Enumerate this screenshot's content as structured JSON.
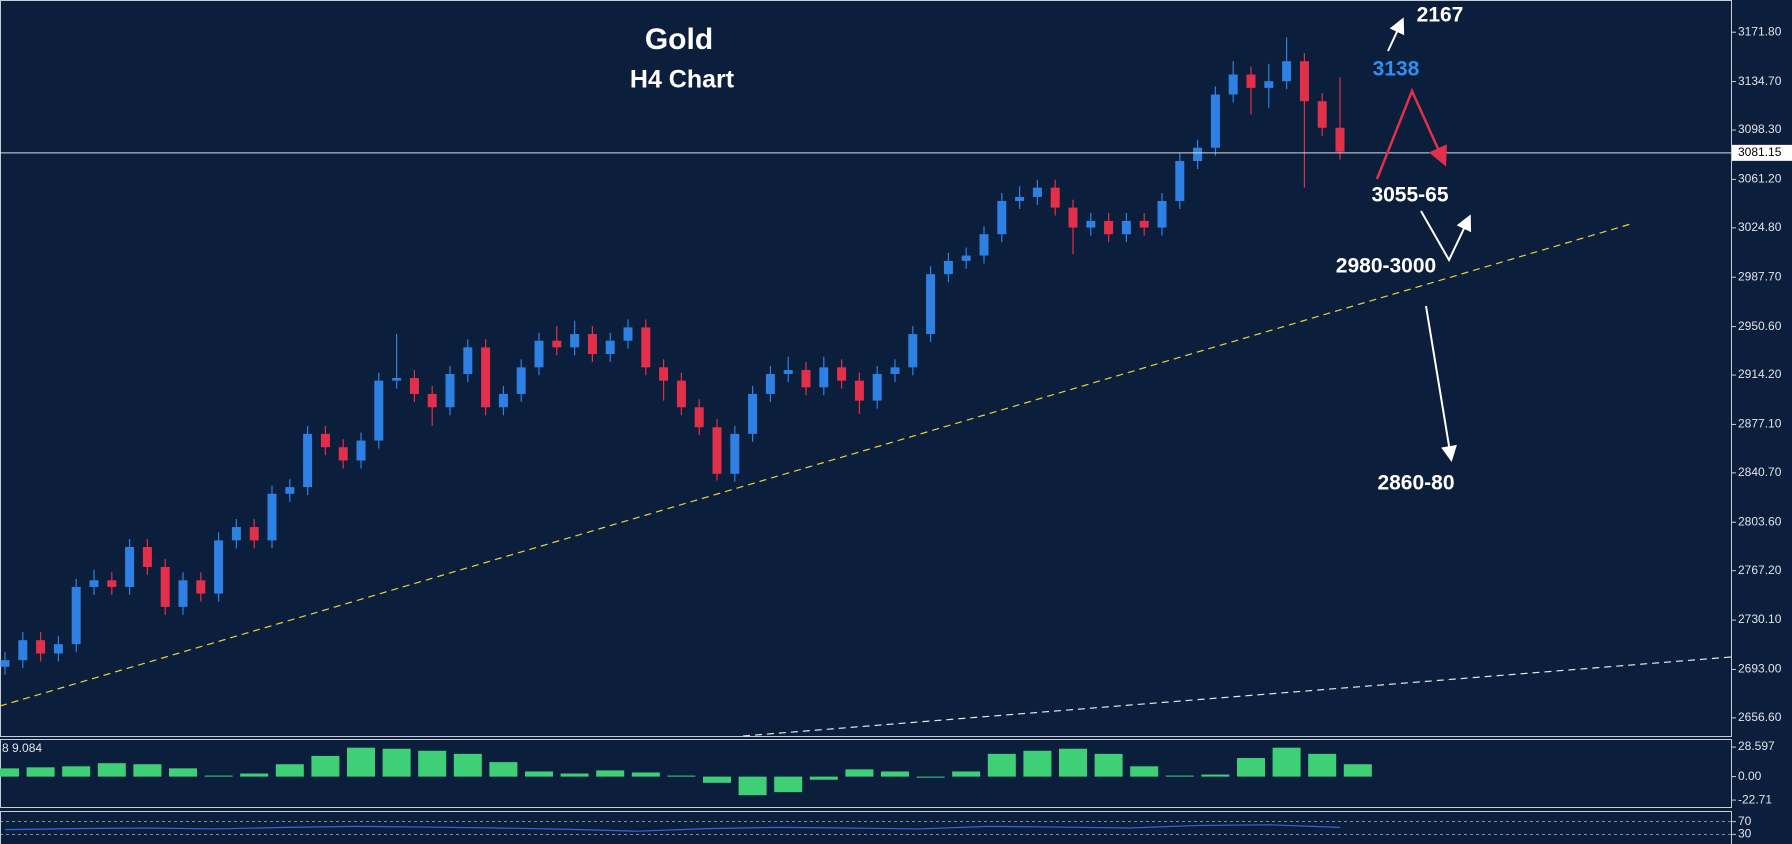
{
  "chart_data": {
    "type": "candlestick",
    "title": "Gold",
    "subtitle": "H4 Chart",
    "up_color": "#2f80e3",
    "down_color": "#e2304a",
    "ohlc": [
      [
        2695,
        2706,
        2689,
        2700
      ],
      [
        2700,
        2721,
        2694,
        2715
      ],
      [
        2715,
        2721,
        2699,
        2705
      ],
      [
        2705,
        2718,
        2699,
        2712
      ],
      [
        2712,
        2761,
        2706,
        2755
      ],
      [
        2755,
        2768,
        2749,
        2760
      ],
      [
        2760,
        2766,
        2749,
        2755
      ],
      [
        2755,
        2791,
        2749,
        2785
      ],
      [
        2785,
        2791,
        2764,
        2770
      ],
      [
        2770,
        2776,
        2734,
        2740
      ],
      [
        2740,
        2766,
        2734,
        2760
      ],
      [
        2760,
        2766,
        2744,
        2750
      ],
      [
        2750,
        2796,
        2744,
        2790
      ],
      [
        2790,
        2806,
        2784,
        2800
      ],
      [
        2800,
        2806,
        2784,
        2790
      ],
      [
        2790,
        2831,
        2784,
        2825
      ],
      [
        2825,
        2836,
        2819,
        2830
      ],
      [
        2830,
        2876,
        2824,
        2870
      ],
      [
        2870,
        2876,
        2854,
        2860
      ],
      [
        2860,
        2866,
        2844,
        2850
      ],
      [
        2850,
        2871,
        2844,
        2865
      ],
      [
        2865,
        2916,
        2859,
        2910
      ],
      [
        2910,
        2945,
        2904,
        2912
      ],
      [
        2912,
        2918,
        2894,
        2900
      ],
      [
        2900,
        2906,
        2876,
        2890
      ],
      [
        2890,
        2921,
        2884,
        2915
      ],
      [
        2915,
        2941,
        2909,
        2935
      ],
      [
        2935,
        2941,
        2884,
        2890
      ],
      [
        2890,
        2906,
        2884,
        2900
      ],
      [
        2900,
        2926,
        2894,
        2920
      ],
      [
        2920,
        2946,
        2914,
        2940
      ],
      [
        2940,
        2951,
        2929,
        2935
      ],
      [
        2935,
        2955,
        2929,
        2945
      ],
      [
        2945,
        2951,
        2924,
        2930
      ],
      [
        2930,
        2946,
        2924,
        2940
      ],
      [
        2940,
        2956,
        2934,
        2950
      ],
      [
        2950,
        2956,
        2914,
        2920
      ],
      [
        2920,
        2926,
        2895,
        2910
      ],
      [
        2910,
        2916,
        2884,
        2890
      ],
      [
        2890,
        2896,
        2869,
        2875
      ],
      [
        2875,
        2881,
        2835,
        2840
      ],
      [
        2840,
        2876,
        2834,
        2870
      ],
      [
        2870,
        2906,
        2864,
        2900
      ],
      [
        2900,
        2921,
        2894,
        2915
      ],
      [
        2915,
        2928,
        2909,
        2918
      ],
      [
        2918,
        2924,
        2899,
        2905
      ],
      [
        2905,
        2928,
        2899,
        2920
      ],
      [
        2920,
        2926,
        2904,
        2910
      ],
      [
        2910,
        2916,
        2885,
        2895
      ],
      [
        2895,
        2921,
        2889,
        2915
      ],
      [
        2915,
        2926,
        2909,
        2920
      ],
      [
        2920,
        2951,
        2914,
        2945
      ],
      [
        2945,
        2996,
        2939,
        2990
      ],
      [
        2990,
        3006,
        2984,
        3000
      ],
      [
        3000,
        3010,
        2994,
        3004
      ],
      [
        3004,
        3026,
        2998,
        3020
      ],
      [
        3020,
        3051,
        3014,
        3045
      ],
      [
        3045,
        3056,
        3039,
        3048
      ],
      [
        3048,
        3061,
        3042,
        3055
      ],
      [
        3055,
        3061,
        3034,
        3040
      ],
      [
        3040,
        3046,
        3005,
        3025
      ],
      [
        3025,
        3036,
        3019,
        3030
      ],
      [
        3030,
        3036,
        3014,
        3020
      ],
      [
        3020,
        3036,
        3014,
        3030
      ],
      [
        3030,
        3036,
        3019,
        3025
      ],
      [
        3025,
        3051,
        3019,
        3045
      ],
      [
        3045,
        3081,
        3039,
        3075
      ],
      [
        3075,
        3091,
        3069,
        3085
      ],
      [
        3085,
        3131,
        3079,
        3125
      ],
      [
        3125,
        3150,
        3119,
        3140
      ],
      [
        3140,
        3146,
        3110,
        3130
      ],
      [
        3130,
        3148,
        3115,
        3135
      ],
      [
        3135,
        3168,
        3129,
        3150
      ],
      [
        3150,
        3156,
        3055,
        3120
      ],
      [
        3120,
        3126,
        3094,
        3100
      ],
      [
        3100,
        3138,
        3076,
        3082
      ]
    ],
    "ylim": [
      2643,
      3196
    ],
    "yticks": [
      {
        "value": 3171.8,
        "label": "3171.80"
      },
      {
        "value": 3134.7,
        "label": "3134.70"
      },
      {
        "value": 3098.3,
        "label": "3098.30"
      },
      {
        "value": 3061.2,
        "label": "3061.20"
      },
      {
        "value": 3024.8,
        "label": "3024.80"
      },
      {
        "value": 2987.7,
        "label": "2987.70"
      },
      {
        "value": 2950.6,
        "label": "2950.60"
      },
      {
        "value": 2914.2,
        "label": "2914.20"
      },
      {
        "value": 2877.1,
        "label": "2877.10"
      },
      {
        "value": 2840.7,
        "label": "2840.70"
      },
      {
        "value": 2803.6,
        "label": "2803.60"
      },
      {
        "value": 2767.2,
        "label": "2767.20"
      },
      {
        "value": 2730.1,
        "label": "2730.10"
      },
      {
        "value": 2693,
        "label": "2693.00"
      },
      {
        "value": 2656.6,
        "label": "2656.60"
      }
    ],
    "current_price": 3081.15,
    "annotations": [
      "2167",
      "3138",
      "3055-65",
      "2980-3000",
      "2860-80"
    ],
    "indicators": [
      {
        "type": "histogram",
        "label": "8 9.084",
        "color": "#3fcf76",
        "values": [
          8,
          9,
          10,
          13,
          12,
          8,
          1,
          3,
          12,
          20,
          28,
          27,
          25,
          22,
          14,
          5,
          3,
          6,
          4,
          1,
          -6,
          -18,
          -15,
          -3,
          7,
          5,
          -1,
          5,
          22,
          25,
          27,
          22,
          10,
          1,
          2,
          18,
          28,
          22,
          12
        ],
        "ylim": [
          -29.4,
          36.4
        ],
        "yticks": [
          28.597,
          {
            "value": 0,
            "label": "0.00"
          },
          -22.71
        ]
      },
      {
        "type": "line",
        "color": "#3a63d8",
        "values": [
          45,
          48,
          50,
          47,
          52,
          55,
          53,
          50,
          46,
          40,
          48,
          52,
          50,
          47,
          55,
          53,
          50,
          58,
          60,
          52
        ],
        "ylim": [
          0,
          100
        ],
        "yticks": [
          70,
          30
        ]
      }
    ]
  }
}
